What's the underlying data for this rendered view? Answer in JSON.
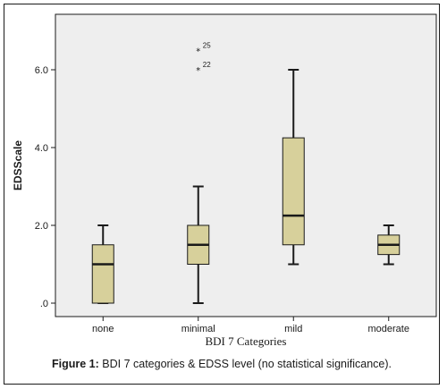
{
  "chart_data": {
    "type": "boxplot",
    "xlabel": "BDI 7 Categories",
    "ylabel": "EDSScale",
    "ylim": [
      0,
      7.3
    ],
    "yticks": [
      0,
      2,
      4,
      6
    ],
    "ytick_labels": [
      ".0",
      "2.0",
      "4.0",
      "6.0"
    ],
    "grid": false,
    "categories": [
      "none",
      "minimal",
      "mild",
      "moderate"
    ],
    "boxes": [
      {
        "category": "none",
        "whisker_low": 0,
        "q1": 0,
        "median": 1.0,
        "q3": 1.5,
        "whisker_high": 2.0
      },
      {
        "category": "minimal",
        "whisker_low": 0,
        "q1": 1.0,
        "median": 1.5,
        "q3": 2.0,
        "whisker_high": 3.0
      },
      {
        "category": "mild",
        "whisker_low": 1.0,
        "q1": 1.5,
        "median": 2.25,
        "q3": 4.25,
        "whisker_high": 6.0
      },
      {
        "category": "moderate",
        "whisker_low": 1.0,
        "q1": 1.25,
        "median": 1.5,
        "q3": 1.75,
        "whisker_high": 2.0
      }
    ],
    "outliers": [
      {
        "category": "minimal",
        "value": 6.5,
        "label": "25"
      },
      {
        "category": "minimal",
        "value": 6.0,
        "label": "22"
      }
    ],
    "colors": {
      "box_fill": "#d7d09b",
      "plot_background": "#eeeeee",
      "line": "#1a1a1a"
    }
  },
  "caption": {
    "label": "Figure 1:",
    "text": " BDI 7 categories & EDSS level (no statistical significance)."
  }
}
